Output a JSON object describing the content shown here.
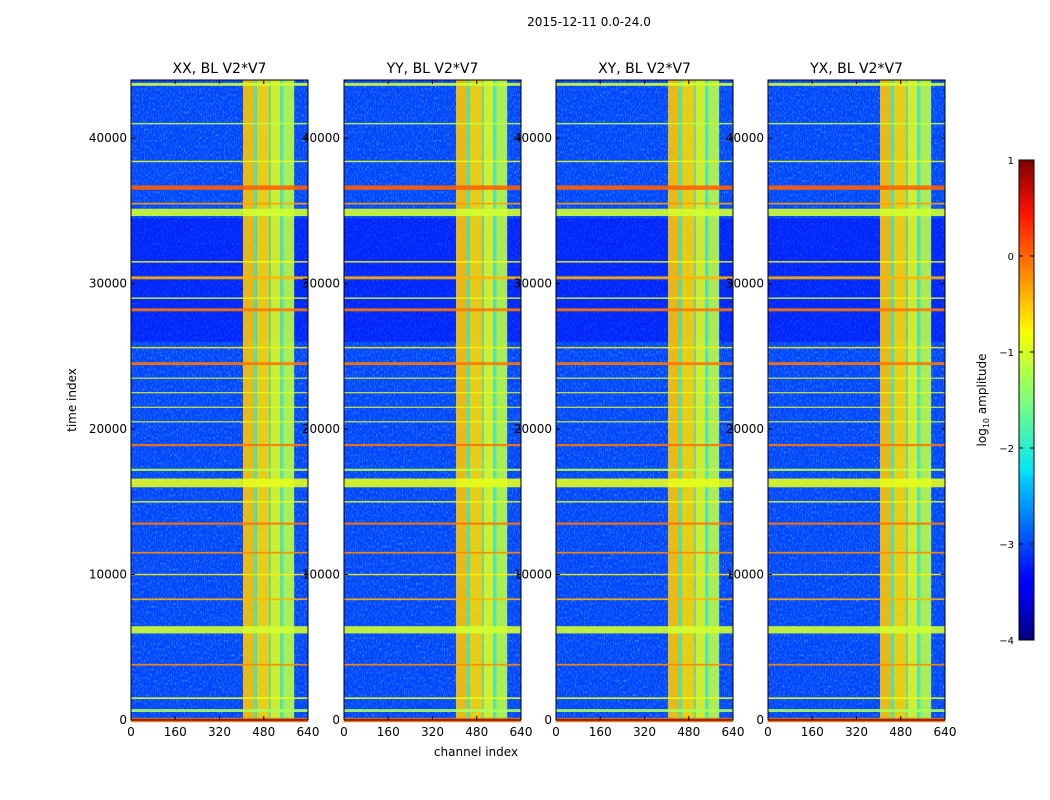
{
  "figure": {
    "suptitle": "2015-12-11 0.0-24.0",
    "xlabel": "channel index",
    "ylabel": "time index"
  },
  "chart_data": {
    "type": "heatmap",
    "title": "2015-12-11 0.0-24.0",
    "xlabel": "channel index",
    "ylabel": "time index",
    "xlim": [
      0,
      640
    ],
    "ylim": [
      0,
      44000
    ],
    "xticks": [
      0,
      160,
      320,
      480,
      640
    ],
    "yticks": [
      0,
      10000,
      20000,
      30000,
      40000
    ],
    "panels": [
      {
        "title": "XX, BL V2*V7",
        "pol": "XX"
      },
      {
        "title": "YY, BL V2*V7",
        "pol": "YY"
      },
      {
        "title": "XY, BL V2*V7",
        "pol": "XY"
      },
      {
        "title": "YX, BL V2*V7",
        "pol": "YX"
      }
    ],
    "colorbar": {
      "label": "log10 amplitude",
      "label_base": "log",
      "label_sub": "10",
      "label_rest": " amplitude",
      "range": [
        -4,
        1
      ],
      "ticks": [
        1,
        0,
        -1,
        -2,
        -3,
        -4
      ],
      "tick_labels": [
        "1",
        "0",
        "−1",
        "−2",
        "−3",
        "−4"
      ],
      "colormap": "jet"
    },
    "band_channels": [
      {
        "start": 405,
        "end": 445,
        "amp": -0.6
      },
      {
        "start": 445,
        "end": 455,
        "amp": -1.8
      },
      {
        "start": 455,
        "end": 500,
        "amp": -0.7
      },
      {
        "start": 500,
        "end": 505,
        "amp": -1.7
      },
      {
        "start": 505,
        "end": 540,
        "amp": -1.0
      },
      {
        "start": 540,
        "end": 550,
        "amp": -1.8
      },
      {
        "start": 550,
        "end": 590,
        "amp": -1.2
      }
    ],
    "rfi_rows": [
      {
        "t": 0,
        "w": 300,
        "amp": -0.1
      },
      {
        "t": 650,
        "w": 200,
        "amp": -1.3
      },
      {
        "t": 1500,
        "w": 120,
        "amp": -1.0
      },
      {
        "t": 3800,
        "w": 120,
        "amp": -0.3
      },
      {
        "t": 6200,
        "w": 500,
        "amp": -1.1
      },
      {
        "t": 8300,
        "w": 120,
        "amp": -0.5
      },
      {
        "t": 10000,
        "w": 100,
        "amp": -0.8
      },
      {
        "t": 11500,
        "w": 120,
        "amp": -0.3
      },
      {
        "t": 13500,
        "w": 150,
        "amp": -0.2
      },
      {
        "t": 15000,
        "w": 100,
        "amp": -1.0
      },
      {
        "t": 16300,
        "w": 600,
        "amp": -1.0
      },
      {
        "t": 17200,
        "w": 150,
        "amp": -1.2
      },
      {
        "t": 18900,
        "w": 150,
        "amp": -0.2
      },
      {
        "t": 20500,
        "w": 80,
        "amp": -1.0
      },
      {
        "t": 21500,
        "w": 80,
        "amp": -1.0
      },
      {
        "t": 22500,
        "w": 80,
        "amp": -1.0
      },
      {
        "t": 23500,
        "w": 80,
        "amp": -1.0
      },
      {
        "t": 24500,
        "w": 200,
        "amp": -0.2
      },
      {
        "t": 25600,
        "w": 100,
        "amp": -0.8
      },
      {
        "t": 28200,
        "w": 200,
        "amp": -0.2
      },
      {
        "t": 29000,
        "w": 100,
        "amp": -1.0
      },
      {
        "t": 30400,
        "w": 200,
        "amp": -0.5
      },
      {
        "t": 31500,
        "w": 100,
        "amp": -0.9
      },
      {
        "t": 34900,
        "w": 500,
        "amp": -1.1
      },
      {
        "t": 35500,
        "w": 120,
        "amp": -0.4
      },
      {
        "t": 36600,
        "w": 300,
        "amp": -0.1
      },
      {
        "t": 38400,
        "w": 100,
        "amp": -1.0
      },
      {
        "t": 41000,
        "w": 100,
        "amp": -1.2
      },
      {
        "t": 43700,
        "w": 200,
        "amp": -1.1
      }
    ]
  }
}
